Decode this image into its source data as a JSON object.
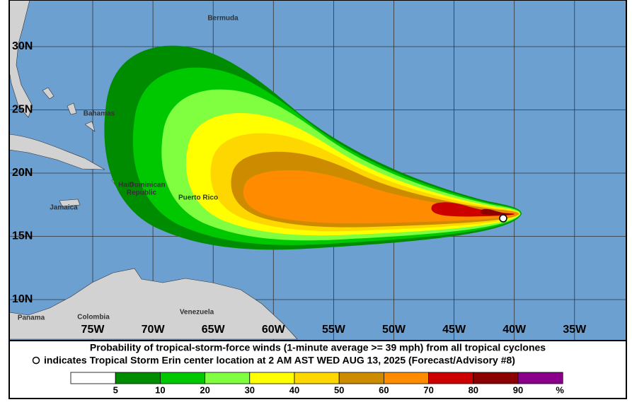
{
  "map": {
    "latitude_labels": [
      "30N",
      "25N",
      "20N",
      "15N",
      "10N"
    ],
    "longitude_labels": [
      "75W",
      "70W",
      "65W",
      "60W",
      "55W",
      "50W",
      "45W",
      "40W",
      "35W"
    ],
    "places": [
      "Bermuda",
      "Bahamas",
      "Haiti",
      "Dominican",
      "Republic",
      "Puerto Rico",
      "Jamaica",
      "Colombia",
      "Venezuela",
      "Panama"
    ]
  },
  "caption": {
    "line1": "Probability of tropical-storm-force winds (1-minute average >= 39 mph) from all tropical cyclones",
    "line2": "indicates Tropical Storm Erin center location at 2 AM AST WED AUG 13, 2025 (Forecast/Advisory #8)"
  },
  "legend": {
    "bins": [
      5,
      10,
      20,
      30,
      40,
      50,
      60,
      70,
      80,
      90
    ],
    "unit": "%",
    "colors": [
      "#ffffff",
      "#008c00",
      "#00c800",
      "#7fff3f",
      "#ffff00",
      "#ffd700",
      "#cd8c00",
      "#ff8c00",
      "#cd0000",
      "#8b0000",
      "#8b008b"
    ]
  }
}
